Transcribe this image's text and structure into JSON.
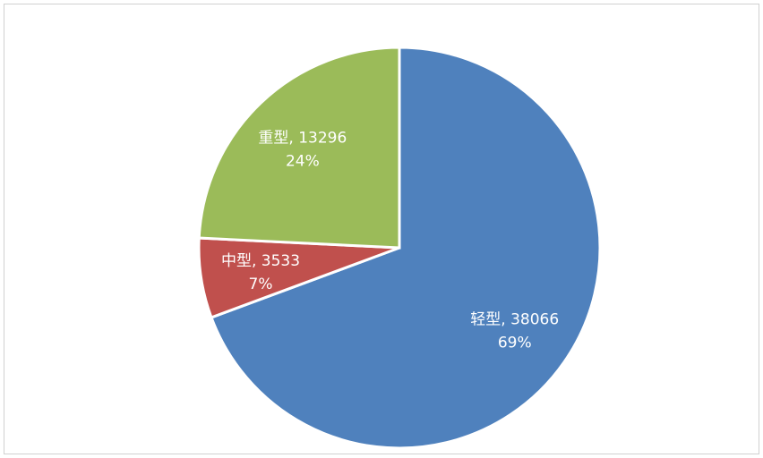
{
  "chart_data": {
    "type": "pie",
    "categories": [
      "轻型",
      "中型",
      "重型"
    ],
    "values": [
      38066,
      3533,
      13296
    ],
    "colors": [
      "#4f81bd",
      "#c0504d",
      "#9bbb59"
    ],
    "label_separator": ", ",
    "percent_labels": [
      "69%",
      "7%",
      "24%"
    ]
  }
}
